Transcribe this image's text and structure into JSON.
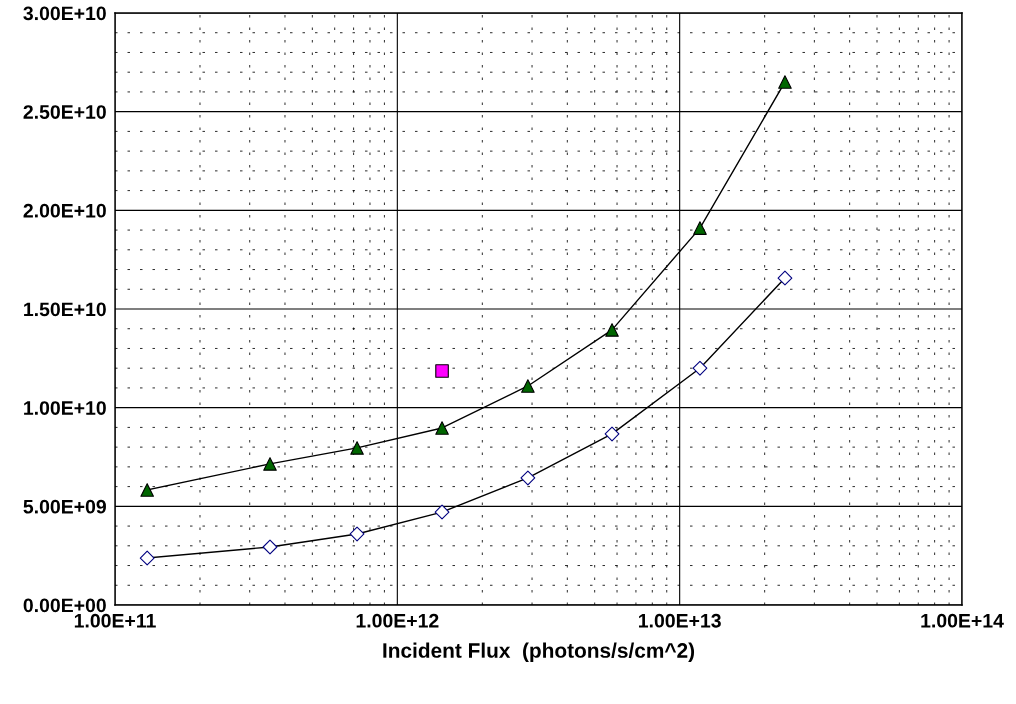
{
  "chart_data": {
    "type": "line",
    "xlabel": "Incident Flux  (photons/s/cm^2)",
    "log": "x",
    "grid": true,
    "xlim": [
      100000000000.0,
      100000000000000.0
    ],
    "xticks": [
      {
        "value": 100000000000.0,
        "label": "1.00E+11"
      },
      {
        "value": 1000000000000.0,
        "label": "1.00E+12"
      },
      {
        "value": 10000000000000.0,
        "label": "1.00E+13"
      },
      {
        "value": 100000000000000.0,
        "label": "1.00E+14"
      }
    ],
    "ylim": [
      0,
      30000000000.0
    ],
    "yticks": [
      {
        "value": 0,
        "label": "0.00E+00"
      },
      {
        "value": 5000000000.0,
        "label": "5.00E+09"
      },
      {
        "value": 10000000000.0,
        "label": "1.00E+10"
      },
      {
        "value": 15000000000.0,
        "label": "1.50E+10"
      },
      {
        "value": 20000000000.0,
        "label": "2.00E+10"
      },
      {
        "value": 25000000000.0,
        "label": "2.50E+10"
      },
      {
        "value": 30000000000.0,
        "label": "3.00E+10"
      }
    ],
    "series": [
      {
        "marker": "triangle",
        "color": "#006600",
        "x": [
          130000000000.0,
          354000000000.0,
          720000000000.0,
          1440000000000.0,
          2900000000000.0,
          5760000000000.0,
          11800000000000.0,
          23600000000000.0
        ],
        "values": [
          5830000000.0,
          7150000000.0,
          7960000000.0,
          8970000000.0,
          11100000000.0,
          13940000000.0,
          19100000000.0,
          26500000000.0
        ]
      },
      {
        "marker": "diamond",
        "color": "#000080",
        "x": [
          130000000000.0,
          354000000000.0,
          720000000000.0,
          1440000000000.0,
          2900000000000.0,
          5760000000000.0,
          11800000000000.0,
          23600000000000.0
        ],
        "values": [
          2380000000.0,
          2940000000.0,
          3600000000.0,
          4710000000.0,
          6440000000.0,
          8670000000.0,
          12000000000.0,
          16570000000.0
        ]
      },
      {
        "type": "scatter",
        "marker": "square",
        "color": "#ff00ff",
        "x": [
          1440000000000.0
        ],
        "values": [
          11860000000.0
        ]
      }
    ]
  }
}
